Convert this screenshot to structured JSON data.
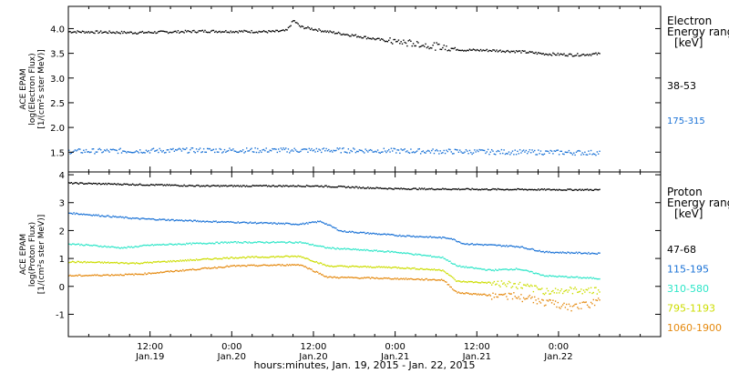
{
  "xlabel": "hours:minutes, Jan. 19, 2015 - Jan. 22, 2015",
  "x_ticks": [
    {
      "hour": 12,
      "time": "12:00",
      "date": "Jan.19"
    },
    {
      "hour": 24,
      "time": "0:00",
      "date": "Jan.20"
    },
    {
      "hour": 36,
      "time": "12:00",
      "date": "Jan.20"
    },
    {
      "hour": 48,
      "time": "0:00",
      "date": "Jan.21"
    },
    {
      "hour": 60,
      "time": "12:00",
      "date": "Jan.21"
    },
    {
      "hour": 72,
      "time": "0:00",
      "date": "Jan.22"
    }
  ],
  "chart_data": [
    {
      "type": "scatter",
      "ylabel": [
        "ACE EPAM",
        "log(Electron Flux)",
        "[1/(cm²s ster MeV)]"
      ],
      "ylim": [
        1.1,
        4.45
      ],
      "yticks": [
        1.5,
        2.0,
        2.5,
        3.0,
        3.5,
        4.0
      ],
      "legend": {
        "title": [
          "Electron",
          "Energy ranges",
          "[keV]"
        ],
        "position": "right"
      },
      "series": [
        {
          "name": "38-53",
          "color": "#000000",
          "points": [
            [
              0,
              3.95
            ],
            [
              10,
              3.93
            ],
            [
              20,
              3.96
            ],
            [
              30,
              3.95
            ],
            [
              32,
              3.97
            ],
            [
              33,
              4.18
            ],
            [
              34,
              4.05
            ],
            [
              38,
              3.95
            ],
            [
              42,
              3.87
            ],
            [
              46,
              3.78
            ],
            [
              50,
              3.72
            ],
            [
              54,
              3.65
            ],
            [
              58,
              3.58
            ],
            [
              62,
              3.57
            ],
            [
              66,
              3.55
            ],
            [
              70,
              3.5
            ],
            [
              74,
              3.48
            ],
            [
              78,
              3.5
            ]
          ]
        },
        {
          "name": "175-315",
          "color": "#1a72d6",
          "points": [
            [
              0,
              1.53
            ],
            [
              20,
              1.55
            ],
            [
              40,
              1.55
            ],
            [
              60,
              1.52
            ],
            [
              78,
              1.5
            ]
          ]
        }
      ]
    },
    {
      "type": "scatter",
      "ylabel": [
        "ACE EPAM",
        "log(Proton Flux)",
        "[1/(cm²s ster MeV)]"
      ],
      "ylim": [
        -1.8,
        4.1
      ],
      "yticks": [
        -1,
        0,
        1,
        2,
        3,
        4
      ],
      "legend": {
        "title": [
          "Proton",
          "Energy ranges",
          "[keV]"
        ],
        "position": "right"
      },
      "series": [
        {
          "name": "47-68",
          "color": "#000000",
          "points": [
            [
              0,
              3.72
            ],
            [
              20,
              3.62
            ],
            [
              36,
              3.62
            ],
            [
              48,
              3.52
            ],
            [
              60,
              3.5
            ],
            [
              78,
              3.48
            ]
          ]
        },
        {
          "name": "115-195",
          "color": "#1a72d6",
          "points": [
            [
              0,
              2.65
            ],
            [
              10,
              2.45
            ],
            [
              20,
              2.35
            ],
            [
              34,
              2.25
            ],
            [
              37,
              2.35
            ],
            [
              40,
              2.0
            ],
            [
              48,
              1.85
            ],
            [
              56,
              1.75
            ],
            [
              58,
              1.55
            ],
            [
              66,
              1.45
            ],
            [
              70,
              1.25
            ],
            [
              78,
              1.2
            ]
          ]
        },
        {
          "name": "310-580",
          "color": "#2ee6c8",
          "points": [
            [
              0,
              1.55
            ],
            [
              8,
              1.4
            ],
            [
              12,
              1.5
            ],
            [
              24,
              1.6
            ],
            [
              34,
              1.6
            ],
            [
              38,
              1.4
            ],
            [
              48,
              1.25
            ],
            [
              55,
              1.05
            ],
            [
              57,
              0.75
            ],
            [
              62,
              0.6
            ],
            [
              66,
              0.65
            ],
            [
              70,
              0.4
            ],
            [
              78,
              0.3
            ]
          ]
        },
        {
          "name": "795-1193",
          "color": "#ccdd00",
          "points": [
            [
              0,
              0.9
            ],
            [
              10,
              0.85
            ],
            [
              24,
              1.05
            ],
            [
              34,
              1.1
            ],
            [
              38,
              0.75
            ],
            [
              48,
              0.7
            ],
            [
              55,
              0.6
            ],
            [
              57,
              0.2
            ],
            [
              62,
              0.15
            ],
            [
              66,
              0.05
            ],
            [
              70,
              -0.15
            ],
            [
              78,
              -0.1
            ]
          ]
        },
        {
          "name": "1060-1900",
          "color": "#e58a10",
          "points": [
            [
              0,
              0.4
            ],
            [
              10,
              0.45
            ],
            [
              24,
              0.75
            ],
            [
              34,
              0.8
            ],
            [
              38,
              0.35
            ],
            [
              48,
              0.3
            ],
            [
              55,
              0.25
            ],
            [
              57,
              -0.2
            ],
            [
              62,
              -0.3
            ],
            [
              66,
              -0.35
            ],
            [
              70,
              -0.55
            ],
            [
              74,
              -0.75
            ],
            [
              78,
              -0.5
            ]
          ]
        }
      ]
    }
  ]
}
